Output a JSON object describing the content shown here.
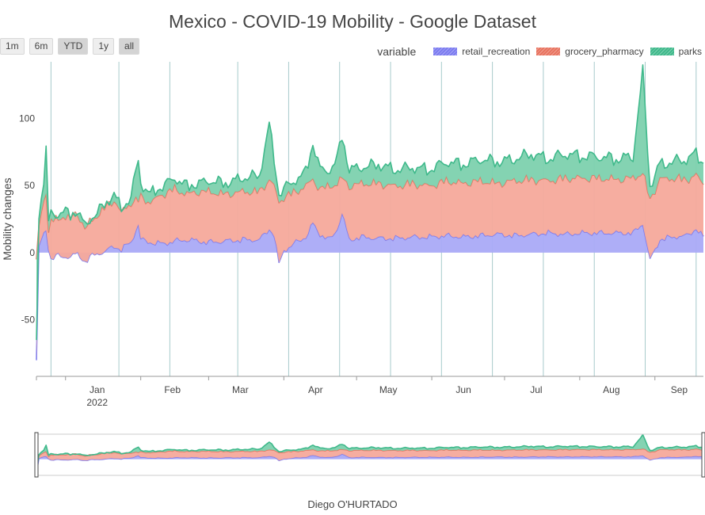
{
  "title": "Mexico - COVID-19 Mobility - Google Dataset",
  "credit": "Diego O'HURTADO",
  "range_buttons": [
    {
      "label": "1m",
      "active": false
    },
    {
      "label": "6m",
      "active": false
    },
    {
      "label": "YTD",
      "active": true
    },
    {
      "label": "1y",
      "active": false
    },
    {
      "label": "all",
      "active": true
    }
  ],
  "legend": {
    "title": "variable",
    "items": [
      {
        "label": "retail_recreation",
        "color": "#7b7bf0"
      },
      {
        "label": "grocery_pharmacy",
        "color": "#e8735f"
      },
      {
        "label": "parks",
        "color": "#3fb98b"
      }
    ]
  },
  "chart_data": {
    "type": "area",
    "stacked": true,
    "x_start": "2021-12-20",
    "x_end": "2022-09-21",
    "xlim": [
      "2021-12-20",
      "2022-09-21"
    ],
    "ylim": [
      -92,
      142
    ],
    "ylabel": "Mobility changes",
    "yticks": [
      -50,
      0,
      50,
      100
    ],
    "xticks": [
      {
        "date": "2022-01-01",
        "label": "Jan",
        "sub": "2022"
      },
      {
        "date": "2022-02-01",
        "label": "Feb"
      },
      {
        "date": "2022-03-01",
        "label": "Mar"
      },
      {
        "date": "2022-04-01",
        "label": "Apr"
      },
      {
        "date": "2022-05-01",
        "label": "May"
      },
      {
        "date": "2022-06-01",
        "label": "Jun"
      },
      {
        "date": "2022-07-01",
        "label": "Jul"
      },
      {
        "date": "2022-08-01",
        "label": "Aug"
      },
      {
        "date": "2022-09-01",
        "label": "Sep"
      }
    ],
    "sundays": [
      "2021-12-26",
      "2022-01-23",
      "2022-02-13",
      "2022-03-13",
      "2022-04-03",
      "2022-04-24",
      "2022-05-15",
      "2022-06-05",
      "2022-06-26",
      "2022-07-17",
      "2022-08-07",
      "2022-08-28",
      "2022-09-18"
    ],
    "grid": false,
    "legend_position": "top-right",
    "series": [
      {
        "name": "retail_recreation",
        "color": "#7b7bf0",
        "fill": "#aaaaf7",
        "points": [
          [
            "2021-12-20",
            -80
          ],
          [
            "2021-12-21",
            5
          ],
          [
            "2021-12-22",
            10
          ],
          [
            "2021-12-23",
            14
          ],
          [
            "2021-12-24",
            17
          ],
          [
            "2021-12-25",
            4
          ],
          [
            "2021-12-26",
            -4
          ],
          [
            "2021-12-28",
            -2
          ],
          [
            "2021-12-31",
            -3
          ],
          [
            "2022-01-03",
            -2
          ],
          [
            "2022-01-06",
            -1
          ],
          [
            "2022-01-09",
            -6
          ],
          [
            "2022-01-12",
            -2
          ],
          [
            "2022-01-15",
            0
          ],
          [
            "2022-01-18",
            2
          ],
          [
            "2022-01-21",
            5
          ],
          [
            "2022-01-24",
            3
          ],
          [
            "2022-01-28",
            8
          ],
          [
            "2022-01-31",
            22
          ],
          [
            "2022-02-01",
            10
          ],
          [
            "2022-02-05",
            8
          ],
          [
            "2022-02-10",
            7
          ],
          [
            "2022-02-15",
            9
          ],
          [
            "2022-02-20",
            10
          ],
          [
            "2022-02-25",
            9
          ],
          [
            "2022-03-01",
            8
          ],
          [
            "2022-03-08",
            9
          ],
          [
            "2022-03-15",
            10
          ],
          [
            "2022-03-22",
            10
          ],
          [
            "2022-03-26",
            18
          ],
          [
            "2022-03-28",
            14
          ],
          [
            "2022-03-30",
            -8
          ],
          [
            "2022-04-01",
            2
          ],
          [
            "2022-04-06",
            8
          ],
          [
            "2022-04-10",
            12
          ],
          [
            "2022-04-13",
            22
          ],
          [
            "2022-04-16",
            14
          ],
          [
            "2022-04-20",
            10
          ],
          [
            "2022-04-23",
            18
          ],
          [
            "2022-04-25",
            30
          ],
          [
            "2022-04-28",
            10
          ],
          [
            "2022-05-03",
            12
          ],
          [
            "2022-05-10",
            11
          ],
          [
            "2022-05-17",
            11
          ],
          [
            "2022-05-24",
            12
          ],
          [
            "2022-05-31",
            12
          ],
          [
            "2022-06-07",
            13
          ],
          [
            "2022-06-14",
            12
          ],
          [
            "2022-06-21",
            13
          ],
          [
            "2022-06-28",
            14
          ],
          [
            "2022-07-05",
            13
          ],
          [
            "2022-07-12",
            14
          ],
          [
            "2022-07-19",
            15
          ],
          [
            "2022-07-26",
            14
          ],
          [
            "2022-08-02",
            15
          ],
          [
            "2022-08-09",
            15
          ],
          [
            "2022-08-16",
            15
          ],
          [
            "2022-08-23",
            15
          ],
          [
            "2022-08-27",
            22
          ],
          [
            "2022-08-30",
            -5
          ],
          [
            "2022-09-03",
            10
          ],
          [
            "2022-09-08",
            12
          ],
          [
            "2022-09-14",
            13
          ],
          [
            "2022-09-18",
            18
          ],
          [
            "2022-09-21",
            12
          ]
        ]
      },
      {
        "name": "grocery_pharmacy",
        "color": "#e8735f",
        "fill": "#f5a99b",
        "points": [
          [
            "2021-12-20",
            -5
          ],
          [
            "2021-12-21",
            20
          ],
          [
            "2021-12-23",
            40
          ],
          [
            "2021-12-24",
            48
          ],
          [
            "2021-12-25",
            15
          ],
          [
            "2021-12-26",
            25
          ],
          [
            "2021-12-28",
            24
          ],
          [
            "2021-12-31",
            28
          ],
          [
            "2022-01-03",
            26
          ],
          [
            "2022-01-06",
            30
          ],
          [
            "2022-01-09",
            18
          ],
          [
            "2022-01-12",
            25
          ],
          [
            "2022-01-15",
            30
          ],
          [
            "2022-01-18",
            35
          ],
          [
            "2022-01-21",
            40
          ],
          [
            "2022-01-24",
            30
          ],
          [
            "2022-01-28",
            38
          ],
          [
            "2022-01-31",
            40
          ],
          [
            "2022-02-01",
            42
          ],
          [
            "2022-02-05",
            38
          ],
          [
            "2022-02-10",
            44
          ],
          [
            "2022-02-15",
            48
          ],
          [
            "2022-02-20",
            44
          ],
          [
            "2022-02-25",
            46
          ],
          [
            "2022-03-01",
            46
          ],
          [
            "2022-03-08",
            44
          ],
          [
            "2022-03-15",
            46
          ],
          [
            "2022-03-22",
            46
          ],
          [
            "2022-03-26",
            55
          ],
          [
            "2022-03-28",
            50
          ],
          [
            "2022-03-30",
            38
          ],
          [
            "2022-04-01",
            42
          ],
          [
            "2022-04-06",
            46
          ],
          [
            "2022-04-10",
            50
          ],
          [
            "2022-04-13",
            55
          ],
          [
            "2022-04-16",
            48
          ],
          [
            "2022-04-20",
            50
          ],
          [
            "2022-04-23",
            52
          ],
          [
            "2022-04-25",
            56
          ],
          [
            "2022-04-28",
            50
          ],
          [
            "2022-05-03",
            52
          ],
          [
            "2022-05-10",
            52
          ],
          [
            "2022-05-17",
            50
          ],
          [
            "2022-05-24",
            52
          ],
          [
            "2022-05-31",
            50
          ],
          [
            "2022-06-07",
            54
          ],
          [
            "2022-06-14",
            52
          ],
          [
            "2022-06-21",
            54
          ],
          [
            "2022-06-28",
            52
          ],
          [
            "2022-07-05",
            54
          ],
          [
            "2022-07-12",
            55
          ],
          [
            "2022-07-19",
            54
          ],
          [
            "2022-07-26",
            56
          ],
          [
            "2022-08-02",
            56
          ],
          [
            "2022-08-09",
            56
          ],
          [
            "2022-08-16",
            55
          ],
          [
            "2022-08-23",
            56
          ],
          [
            "2022-08-27",
            60
          ],
          [
            "2022-08-30",
            40
          ],
          [
            "2022-09-03",
            55
          ],
          [
            "2022-09-08",
            56
          ],
          [
            "2022-09-14",
            55
          ],
          [
            "2022-09-18",
            58
          ],
          [
            "2022-09-21",
            52
          ]
        ]
      },
      {
        "name": "parks",
        "color": "#3fb98b",
        "fill": "#7dd1ae",
        "points": [
          [
            "2021-12-20",
            -65
          ],
          [
            "2021-12-21",
            25
          ],
          [
            "2021-12-23",
            55
          ],
          [
            "2021-12-24",
            78
          ],
          [
            "2021-12-25",
            22
          ],
          [
            "2021-12-26",
            30
          ],
          [
            "2021-12-28",
            28
          ],
          [
            "2021-12-31",
            32
          ],
          [
            "2022-01-03",
            28
          ],
          [
            "2022-01-06",
            32
          ],
          [
            "2022-01-09",
            20
          ],
          [
            "2022-01-12",
            27
          ],
          [
            "2022-01-15",
            32
          ],
          [
            "2022-01-18",
            38
          ],
          [
            "2022-01-21",
            44
          ],
          [
            "2022-01-24",
            33
          ],
          [
            "2022-01-28",
            42
          ],
          [
            "2022-01-31",
            70
          ],
          [
            "2022-02-01",
            52
          ],
          [
            "2022-02-05",
            44
          ],
          [
            "2022-02-10",
            50
          ],
          [
            "2022-02-15",
            56
          ],
          [
            "2022-02-20",
            50
          ],
          [
            "2022-02-25",
            52
          ],
          [
            "2022-03-01",
            54
          ],
          [
            "2022-03-08",
            52
          ],
          [
            "2022-03-15",
            56
          ],
          [
            "2022-03-22",
            58
          ],
          [
            "2022-03-26",
            96
          ],
          [
            "2022-03-28",
            70
          ],
          [
            "2022-03-30",
            44
          ],
          [
            "2022-04-01",
            48
          ],
          [
            "2022-04-06",
            55
          ],
          [
            "2022-04-10",
            60
          ],
          [
            "2022-04-13",
            82
          ],
          [
            "2022-04-16",
            62
          ],
          [
            "2022-04-20",
            62
          ],
          [
            "2022-04-23",
            70
          ],
          [
            "2022-04-25",
            88
          ],
          [
            "2022-04-28",
            62
          ],
          [
            "2022-05-03",
            64
          ],
          [
            "2022-05-10",
            66
          ],
          [
            "2022-05-17",
            62
          ],
          [
            "2022-05-24",
            64
          ],
          [
            "2022-05-31",
            62
          ],
          [
            "2022-06-07",
            68
          ],
          [
            "2022-06-14",
            66
          ],
          [
            "2022-06-21",
            70
          ],
          [
            "2022-06-28",
            68
          ],
          [
            "2022-07-05",
            70
          ],
          [
            "2022-07-12",
            74
          ],
          [
            "2022-07-19",
            70
          ],
          [
            "2022-07-26",
            74
          ],
          [
            "2022-08-02",
            72
          ],
          [
            "2022-08-09",
            72
          ],
          [
            "2022-08-16",
            70
          ],
          [
            "2022-08-23",
            72
          ],
          [
            "2022-08-27",
            135
          ],
          [
            "2022-08-30",
            50
          ],
          [
            "2022-09-03",
            66
          ],
          [
            "2022-09-08",
            68
          ],
          [
            "2022-09-14",
            70
          ],
          [
            "2022-09-18",
            74
          ],
          [
            "2022-09-21",
            68
          ]
        ]
      }
    ]
  }
}
